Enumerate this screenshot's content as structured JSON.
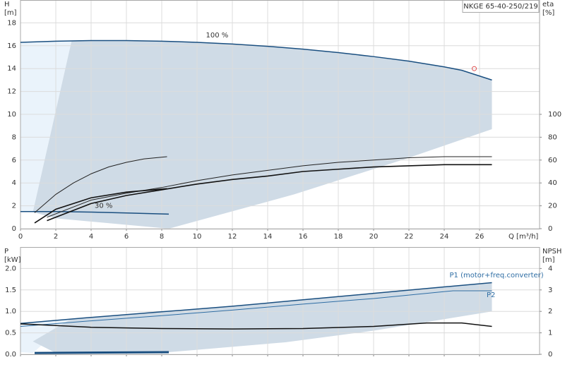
{
  "chart_data": [
    {
      "type": "line",
      "title": "NKGE 65-40-250/219",
      "ylabel": [
        "H",
        "[m]"
      ],
      "y2label": [
        "eta",
        "[%]"
      ],
      "xlabel": "Q [m³/h]",
      "xlim": [
        0,
        29.4
      ],
      "xticks": [
        0,
        2,
        4,
        6,
        8,
        10,
        12,
        14,
        16,
        18,
        20,
        22,
        24,
        26
      ],
      "ylim": [
        0,
        20
      ],
      "yticks": [
        0,
        2,
        4,
        6,
        8,
        10,
        12,
        14,
        16,
        18
      ],
      "y2lim": [
        0,
        200
      ],
      "y2ticks": [
        0,
        20,
        40,
        60,
        80,
        100
      ],
      "grid": true,
      "annotations": [
        "100 %",
        "30 %"
      ],
      "areas": [
        {
          "color": "#eaf3fb",
          "x": [
            0,
            0,
            2.9,
            0.7
          ],
          "values": [
            1.5,
            16.3,
            16.45,
            1.45
          ]
        },
        {
          "color": "#cfdbe6",
          "x": [
            2.9,
            6,
            10,
            14,
            18,
            22,
            25,
            26.7,
            26.7,
            22,
            15.5,
            8.4,
            2,
            0.7
          ],
          "values": [
            16.45,
            16.45,
            16.3,
            15.95,
            15.4,
            14.65,
            13.85,
            13.0,
            8.7,
            6.2,
            3.0,
            0,
            0.9,
            1.45
          ]
        }
      ],
      "series": [
        {
          "color": "#1a4f80",
          "width": 1.5,
          "x": [
            0,
            2,
            4,
            6,
            8,
            10,
            12,
            14,
            16,
            18,
            20,
            22,
            24,
            25,
            26.7
          ],
          "values": [
            16.3,
            16.4,
            16.45,
            16.45,
            16.4,
            16.3,
            16.15,
            15.95,
            15.7,
            15.4,
            15.05,
            14.65,
            14.15,
            13.85,
            13.0
          ]
        },
        {
          "color": "#1a4f80",
          "width": 1.5,
          "x": [
            0,
            2,
            4,
            6,
            8.4
          ],
          "values": [
            1.5,
            1.5,
            1.45,
            1.37,
            1.27
          ]
        },
        {
          "color": "#222222",
          "width": 1,
          "axis": "y2",
          "x": [
            1.5,
            4,
            6,
            8,
            10,
            12,
            14,
            16,
            18,
            20,
            22,
            24,
            26.7
          ],
          "values": [
            10,
            25,
            31,
            36,
            42,
            47,
            51,
            55,
            58,
            60,
            62,
            63,
            63
          ]
        },
        {
          "color": "#111111",
          "width": 1.6,
          "axis": "y2",
          "x": [
            1.5,
            4,
            6,
            8,
            10,
            12,
            14,
            16,
            18,
            20,
            22,
            24,
            26.7
          ],
          "values": [
            7,
            22,
            29,
            34,
            39,
            43,
            46,
            50,
            52,
            54,
            55,
            56,
            56
          ]
        },
        {
          "color": "#222222",
          "width": 1,
          "axis": "y2",
          "x": [
            0.8,
            2,
            3,
            4,
            5,
            6,
            7,
            8.3
          ],
          "values": [
            14,
            30,
            40,
            48,
            54,
            58,
            61,
            63
          ]
        },
        {
          "color": "#111111",
          "width": 1.6,
          "axis": "y2",
          "x": [
            0.8,
            2,
            4,
            6,
            8.3
          ],
          "values": [
            5,
            17,
            27,
            32,
            35
          ]
        },
        {
          "color": "#e05050",
          "marker": "circle",
          "x": [
            25.7
          ],
          "values": [
            14.0
          ]
        }
      ]
    },
    {
      "type": "line",
      "ylabel": [
        "P",
        "[kW]"
      ],
      "y2label": [
        "NPSH",
        "[m]"
      ],
      "xlim": [
        0,
        29.4
      ],
      "xticks": [
        0,
        2,
        4,
        6,
        8,
        10,
        12,
        14,
        16,
        18,
        20,
        22,
        24,
        26
      ],
      "xtick_labels": false,
      "ylim": [
        0,
        2.5
      ],
      "yticks": [
        {
          "value": 0,
          "label": "0.0"
        },
        {
          "value": 0.5,
          "label": "0.5"
        },
        {
          "value": 1,
          "label": "1.0"
        },
        {
          "value": 1.5,
          "label": "1.5"
        },
        {
          "value": 2,
          "label": "2.0"
        }
      ],
      "y2lim": [
        0,
        5
      ],
      "y2ticks": [
        0,
        1,
        2,
        3,
        4
      ],
      "grid": true,
      "annotations": [
        "P1 (motor+freq.converter)",
        "P2"
      ],
      "areas": [
        {
          "color": "#eaf3fb",
          "x": [
            0,
            0,
            2.9,
            0.7
          ],
          "values": [
            0.05,
            0.72,
            0.83,
            0.03
          ]
        },
        {
          "color": "#cfdbe6",
          "x": [
            2.9,
            8,
            12,
            16,
            20,
            24,
            26.7,
            26.7,
            20,
            15,
            8.4,
            2,
            0.7
          ],
          "values": [
            0.83,
            0.99,
            1.12,
            1.27,
            1.42,
            1.57,
            1.67,
            1.0,
            0.55,
            0.28,
            0.05,
            0.03,
            0.3
          ]
        }
      ],
      "series": [
        {
          "color": "#1a4f80",
          "width": 1.5,
          "x": [
            0,
            4,
            8,
            12,
            16,
            20,
            24,
            26.7
          ],
          "values": [
            0.72,
            0.86,
            0.99,
            1.12,
            1.27,
            1.42,
            1.57,
            1.67
          ]
        },
        {
          "color": "#2e6da4",
          "width": 1,
          "x": [
            0,
            4,
            8,
            12,
            16,
            20,
            24.5,
            26.7
          ],
          "values": [
            0.65,
            0.78,
            0.9,
            1.03,
            1.17,
            1.3,
            1.48,
            1.48
          ]
        },
        {
          "color": "#111111",
          "width": 1.5,
          "axis": "y2",
          "x": [
            0,
            2,
            4,
            8,
            12,
            16,
            20,
            23,
            25,
            26.7
          ],
          "values": [
            1.42,
            1.34,
            1.26,
            1.2,
            1.18,
            1.2,
            1.3,
            1.46,
            1.46,
            1.3
          ]
        },
        {
          "color": "#1a4f80",
          "width": 3,
          "x": [
            0.8,
            8.4
          ],
          "values": [
            0.03,
            0.05
          ]
        }
      ]
    }
  ]
}
